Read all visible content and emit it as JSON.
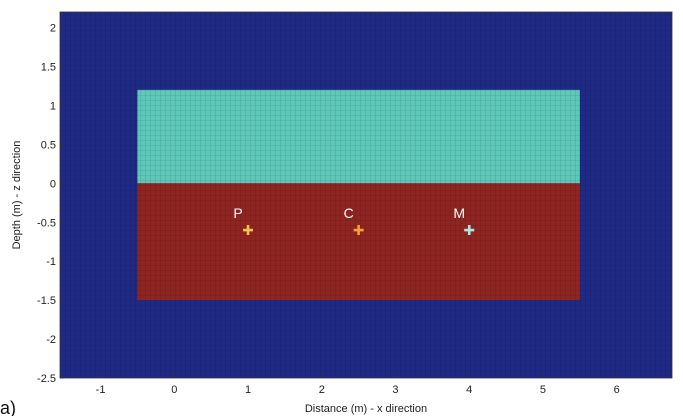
{
  "panel_label": "a)",
  "chart_data": {
    "type": "heatmap",
    "xlabel": "Distance (m) - x direction",
    "ylabel": "Depth (m) - z direction",
    "xlim": [
      -1.55,
      6.75
    ],
    "ylim": [
      -2.5,
      2.2
    ],
    "xticks": [
      -1,
      0,
      1,
      2,
      3,
      4,
      5,
      6
    ],
    "yticks": [
      2,
      1.5,
      1,
      0.5,
      0,
      -0.5,
      -1,
      -1.5,
      -2,
      -2.5
    ],
    "grid": "fine mesh overlay",
    "colors": {
      "background": "#1f2a86",
      "upper_region": "#5ec8b9",
      "lower_region": "#8e2521",
      "mesh_line": "#000000"
    },
    "regions": [
      {
        "x": [
          -0.5,
          5.5
        ],
        "z": [
          0,
          1.2
        ],
        "color": "#5ec8b9"
      },
      {
        "x": [
          -0.5,
          5.5
        ],
        "z": [
          -1.5,
          0
        ],
        "color": "#8e2521"
      }
    ],
    "points": [
      {
        "label": "P",
        "x": 1,
        "z": -0.6,
        "color": "#f0c050"
      },
      {
        "label": "C",
        "x": 2.5,
        "z": -0.6,
        "color": "#f0a040"
      },
      {
        "label": "M",
        "x": 4,
        "z": -0.6,
        "color": "#a8e8e0"
      }
    ]
  }
}
